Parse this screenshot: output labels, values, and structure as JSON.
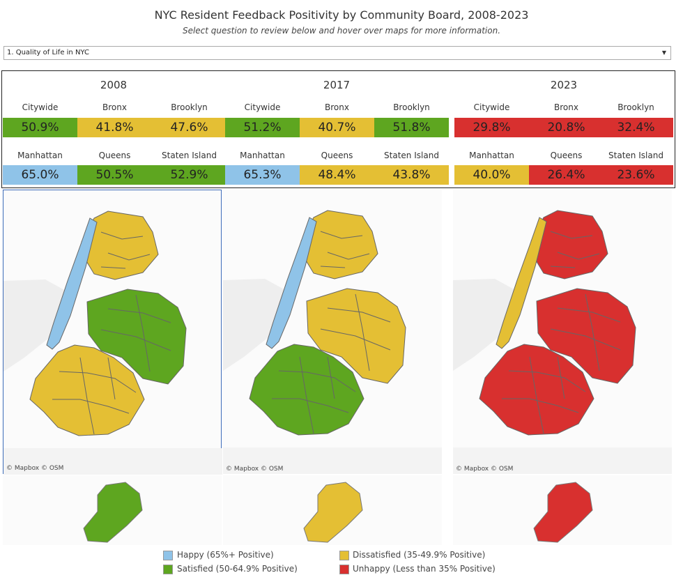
{
  "header": {
    "title": "NYC Resident Feedback Positivity by Community Board, 2008-2023",
    "subtitle": "Select question to review below and hover over maps for more information."
  },
  "question_select": {
    "selected": "1. Quality of Life in NYC"
  },
  "colors": {
    "happy": "#8fc3e8",
    "satisfied": "#5ea620",
    "dissatisfied": "#e4bf34",
    "unhappy": "#d8302f"
  },
  "years": [
    {
      "label": "2008",
      "row1": [
        {
          "name": "Citywide",
          "value": "50.9%",
          "cat": "satisfied"
        },
        {
          "name": "Bronx",
          "value": "41.8%",
          "cat": "dissatisfied"
        },
        {
          "name": "Brooklyn",
          "value": "47.6%",
          "cat": "dissatisfied"
        }
      ],
      "row2": [
        {
          "name": "Manhattan",
          "value": "65.0%",
          "cat": "happy"
        },
        {
          "name": "Queens",
          "value": "50.5%",
          "cat": "satisfied"
        },
        {
          "name": "Staten Island",
          "value": "52.9%",
          "cat": "satisfied"
        }
      ]
    },
    {
      "label": "2017",
      "row1": [
        {
          "name": "Citywide",
          "value": "51.2%",
          "cat": "satisfied"
        },
        {
          "name": "Bronx",
          "value": "40.7%",
          "cat": "dissatisfied"
        },
        {
          "name": "Brooklyn",
          "value": "51.8%",
          "cat": "satisfied"
        }
      ],
      "row2": [
        {
          "name": "Manhattan",
          "value": "65.3%",
          "cat": "happy"
        },
        {
          "name": "Queens",
          "value": "48.4%",
          "cat": "dissatisfied"
        },
        {
          "name": "Staten Island",
          "value": "43.8%",
          "cat": "dissatisfied"
        }
      ]
    },
    {
      "label": "2023",
      "row1": [
        {
          "name": "Citywide",
          "value": "29.8%",
          "cat": "unhappy"
        },
        {
          "name": "Bronx",
          "value": "20.8%",
          "cat": "unhappy"
        },
        {
          "name": "Brooklyn",
          "value": "32.4%",
          "cat": "unhappy"
        }
      ],
      "row2": [
        {
          "name": "Manhattan",
          "value": "40.0%",
          "cat": "dissatisfied"
        },
        {
          "name": "Queens",
          "value": "26.4%",
          "cat": "unhappy"
        },
        {
          "name": "Staten Island",
          "value": "23.6%",
          "cat": "unhappy"
        }
      ]
    }
  ],
  "maps": {
    "credit": "© Mapbox  © OSM"
  },
  "legend": {
    "happy": "Happy (65%+ Positive)",
    "satisfied": "Satisfied (50-64.9% Positive)",
    "dissatisfied": "Dissatisfied (35-49.9% Positive)",
    "unhappy": "Unhappy (Less than 35% Positive)"
  }
}
